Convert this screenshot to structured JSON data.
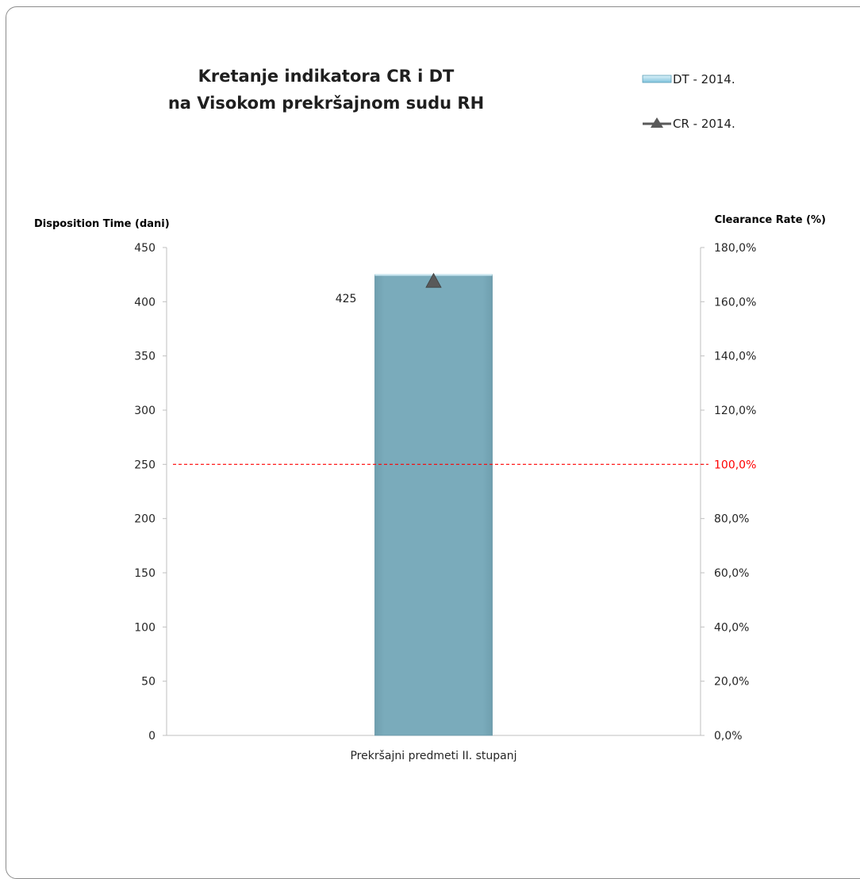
{
  "chart_data": {
    "type": "bar",
    "title_lines": [
      "Kretanje indikatora CR i DT",
      "na Visokom prekršajnom sudu RH"
    ],
    "categories": [
      "Prekršajni predmeti II. stupanj"
    ],
    "series": [
      {
        "name": "DT - 2014.",
        "type": "bar",
        "axis": "left",
        "values": [
          425
        ],
        "data_labels": [
          "425"
        ],
        "color": "#7aabbb"
      },
      {
        "name": "CR - 2014.",
        "type": "line",
        "axis": "right",
        "marker": "triangle",
        "values": [
          167.5
        ],
        "color": "#595959"
      }
    ],
    "ylabel_left": "Disposition Time (dani)",
    "ylabel_right": "Clearance Rate (%)",
    "ylim_left": [
      0,
      450
    ],
    "ylim_right": [
      0,
      180
    ],
    "yticks_left": [
      "0",
      "50",
      "100",
      "150",
      "200",
      "250",
      "300",
      "350",
      "400",
      "450"
    ],
    "yticks_right": [
      "0,0%",
      "20,0%",
      "40,0%",
      "60,0%",
      "80,0%",
      "100,0%",
      "120,0%",
      "140,0%",
      "160,0%",
      "180,0%"
    ],
    "reference_line": {
      "axis": "right",
      "value": 100,
      "color": "#ff0000",
      "style": "dashed"
    },
    "legend_position": "top-right",
    "grid": false
  }
}
